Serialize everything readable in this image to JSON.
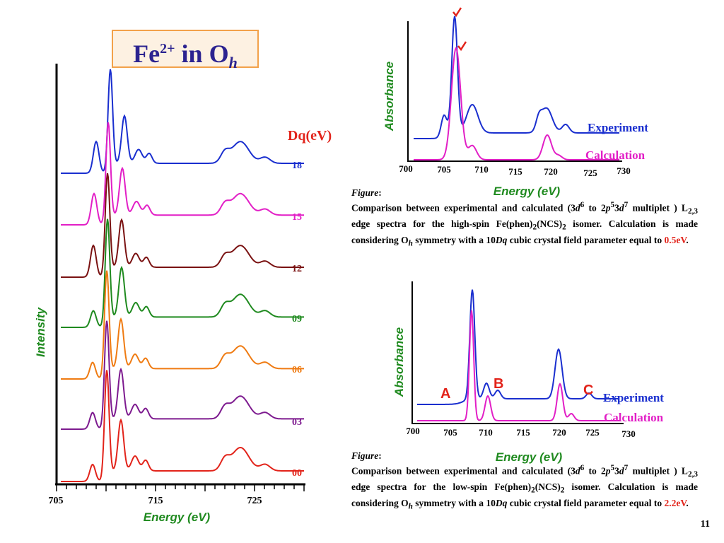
{
  "title": {
    "base": "Fe",
    "sup": "2+",
    "mid": " in O",
    "sub": "h"
  },
  "chart_data": [
    {
      "type": "line",
      "xlabel": "Energy  (eV)",
      "ylabel": "Intensity",
      "xticks": [
        "705",
        "715",
        "725"
      ],
      "legend_title": "Dq(eV)",
      "series": [
        {
          "name": "18",
          "color": "#1a2fcf"
        },
        {
          "name": "15",
          "color": "#e21fc6"
        },
        {
          "name": "12",
          "color": "#7a1212"
        },
        {
          "name": "09",
          "color": "#1f8a1f"
        },
        {
          "name": "06",
          "color": "#ef7b12"
        },
        {
          "name": "03",
          "color": "#7d1a8f"
        },
        {
          "name": "00",
          "color": "#e2231a"
        }
      ]
    },
    {
      "type": "line",
      "xlabel": "Energy  (eV)",
      "ylabel": "Absorbance",
      "xticks": [
        "700",
        "705",
        "710",
        "715",
        "720",
        "725",
        "730"
      ],
      "xlim": [
        700,
        730
      ],
      "series": [
        {
          "name": "Experiment",
          "color": "#1a2fcf"
        },
        {
          "name": "Calculation",
          "color": "#e21fc6"
        }
      ]
    },
    {
      "type": "line",
      "xlabel": "Energy  (eV)",
      "ylabel": "Absorbance",
      "xticks": [
        "700",
        "705",
        "710",
        "715",
        "720",
        "725",
        "730"
      ],
      "xlim": [
        700,
        730
      ],
      "annotations": [
        "A",
        "B",
        "C"
      ],
      "series": [
        {
          "name": "Experiment",
          "color": "#1a2fcf"
        },
        {
          "name": "Calculation",
          "color": "#e21fc6"
        }
      ]
    }
  ],
  "captions": [
    {
      "label": "Figure",
      "colon": ":",
      "t1": "Comparison between experimental and calculated (3",
      "d": "d",
      "six": "6",
      "t2": " to 2",
      "p": "p",
      "five": "5",
      "three": "3",
      "seven": "7",
      "t3": " multiplet ) L",
      "l_sub": "2,3",
      "t4": " edge spectra for the high-spin Fe(phen)",
      "two": "2",
      "t5": "(NCS)",
      "t6": " isomer. Calculation is made considering O",
      "h": "h",
      "t7": " symmetry with a 10",
      "dq": "Dq",
      "t8": " cubic crystal field parameter equal to ",
      "value": "0.5eV",
      "end": "."
    },
    {
      "label": "Figure",
      "colon": ":",
      "t1": "Comparison between experimental and calculated (3",
      "d": "d",
      "six": "6",
      "t2": " to 2",
      "p": "p",
      "five": "5",
      "three": "3",
      "seven": "7",
      "t3": " multiplet ) L",
      "l_sub": "2,3",
      "t4": " edge spectra for the low-spin Fe(phen)",
      "two": "2",
      "t5": "(NCS)",
      "t6": " isomer. Calculation is made considering O",
      "h": "h",
      "t7": " symmetry with a 10",
      "dq": "Dq",
      "t8": " cubic crystal field parameter equal to ",
      "value": "2.2eV",
      "end": "."
    }
  ],
  "page_number": "11"
}
